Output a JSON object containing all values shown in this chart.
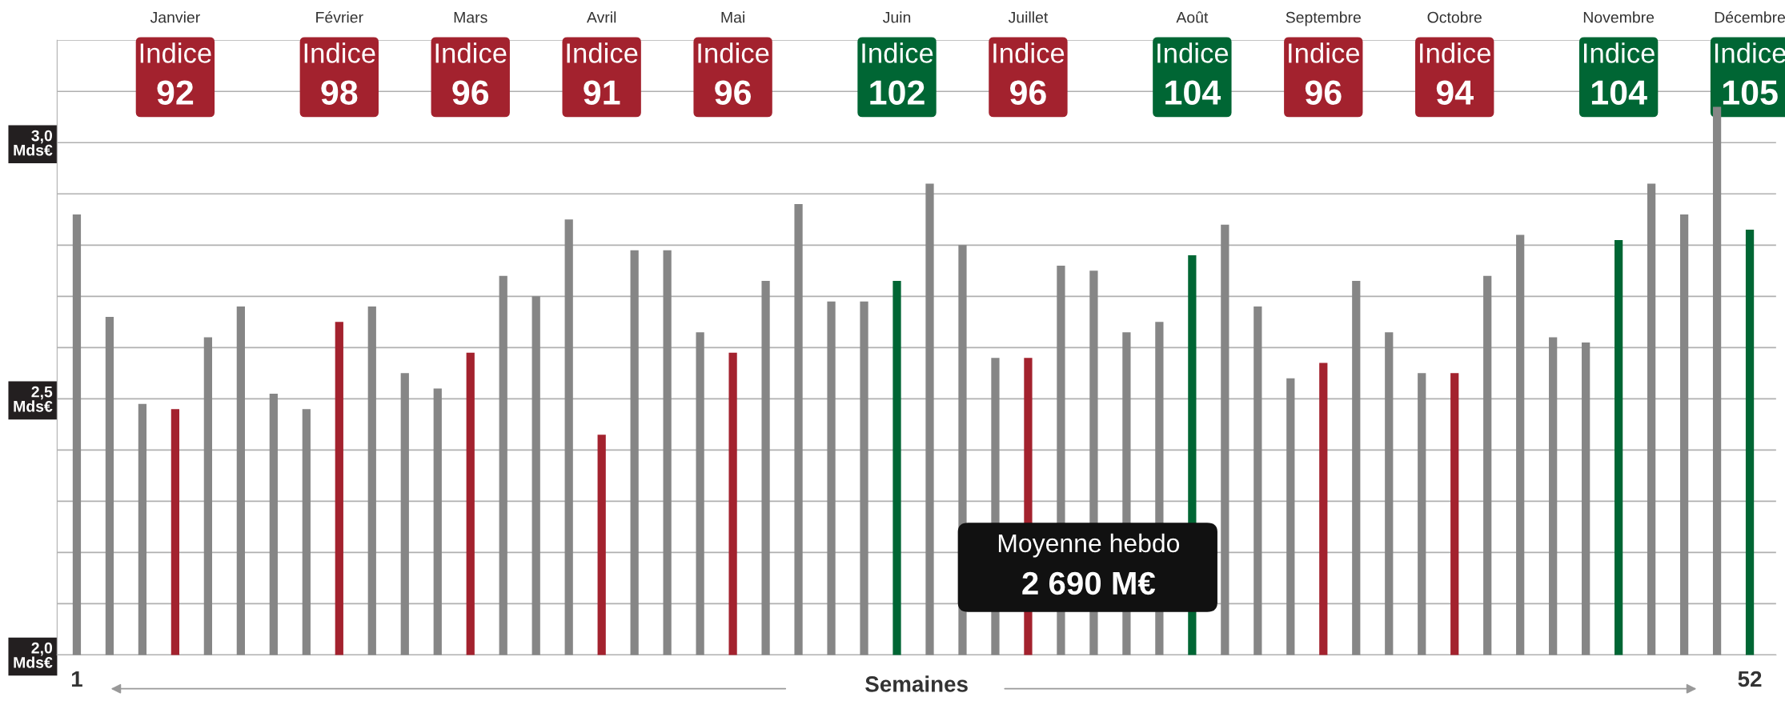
{
  "chart_data": {
    "type": "bar",
    "xlabel": "Semaines",
    "categories": [
      "1",
      null,
      null,
      null,
      null,
      null,
      null,
      null,
      null,
      null,
      null,
      null,
      null,
      null,
      null,
      null,
      null,
      null,
      null,
      null,
      null,
      null,
      null,
      null,
      null,
      null,
      null,
      null,
      null,
      null,
      null,
      null,
      null,
      null,
      null,
      null,
      null,
      null,
      null,
      null,
      null,
      null,
      null,
      null,
      null,
      null,
      null,
      null,
      null,
      null,
      null,
      "52"
    ],
    "values": [
      2.86,
      2.66,
      2.49,
      2.48,
      2.62,
      2.68,
      2.51,
      2.48,
      2.65,
      2.68,
      2.55,
      2.52,
      2.59,
      2.74,
      2.7,
      2.85,
      2.43,
      2.79,
      2.79,
      2.63,
      2.59,
      2.73,
      2.88,
      2.69,
      2.69,
      2.73,
      2.92,
      2.8,
      2.58,
      2.58,
      2.76,
      2.75,
      2.63,
      2.65,
      2.78,
      2.84,
      2.68,
      2.54,
      2.57,
      2.73,
      2.63,
      2.55,
      2.55,
      2.74,
      2.82,
      2.62,
      2.61,
      2.81,
      2.92,
      2.86,
      3.07,
      2.83
    ],
    "colors": [
      "#868686",
      "#868686",
      "#868686",
      "#a3222e",
      "#868686",
      "#868686",
      "#868686",
      "#868686",
      "#a3222e",
      "#868686",
      "#868686",
      "#868686",
      "#a3222e",
      "#868686",
      "#868686",
      "#868686",
      "#a3222e",
      "#868686",
      "#868686",
      "#868686",
      "#a3222e",
      "#868686",
      "#868686",
      "#868686",
      "#868686",
      "#006634",
      "#868686",
      "#868686",
      "#868686",
      "#a3222e",
      "#868686",
      "#868686",
      "#868686",
      "#868686",
      "#006634",
      "#868686",
      "#868686",
      "#868686",
      "#a3222e",
      "#868686",
      "#868686",
      "#868686",
      "#a3222e",
      "#868686",
      "#868686",
      "#868686",
      "#868686",
      "#006634",
      "#868686",
      "#868686",
      "#868686",
      "#006634"
    ],
    "ylim": [
      2.0,
      3.2
    ],
    "yticks": [
      {
        "value": 2.0,
        "label": "2,0\nMds€"
      },
      {
        "value": 2.1,
        "label": null
      },
      {
        "value": 2.2,
        "label": null
      },
      {
        "value": 2.3,
        "label": null
      },
      {
        "value": 2.4,
        "label": null
      },
      {
        "value": 2.5,
        "label": "2,5\nMds€"
      },
      {
        "value": 2.6,
        "label": null
      },
      {
        "value": 2.7,
        "label": null
      },
      {
        "value": 2.8,
        "label": null
      },
      {
        "value": 2.9,
        "label": null
      },
      {
        "value": 3.0,
        "label": "3,0\nMds€"
      },
      {
        "value": 3.1,
        "label": null
      },
      {
        "value": 3.2,
        "label": null
      }
    ],
    "grid": "y",
    "annotations": [
      "Janvier",
      "Février",
      "Mars",
      "Avril",
      "Mai",
      "Juin",
      "Juillet",
      "Août",
      "Septembre",
      "Octobre",
      "Novembre",
      "Décembre",
      "Indice\n92",
      "Indice\n98",
      "Indice\n96",
      "Indice\n91",
      "Indice\n96",
      "Indice\n102",
      "Indice\n96",
      "Indice\n104",
      "Indice\n96",
      "Indice\n94",
      "Indice\n104",
      "Indice\n105",
      "Moyenne hebdo\n2 690 M€"
    ]
  }
}
